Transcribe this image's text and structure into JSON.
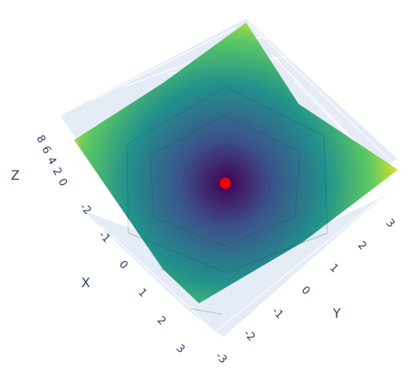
{
  "chart_data": {
    "type": "surface",
    "title": "",
    "axes": {
      "x": {
        "label": "X",
        "ticks": [
          "-2",
          "-1",
          "0",
          "1",
          "2",
          "3"
        ],
        "range": [
          -3,
          3
        ]
      },
      "y": {
        "label": "Y",
        "ticks": [
          "-3",
          "-2",
          "-1",
          "0",
          "1",
          "2",
          "3"
        ],
        "range": [
          -3,
          3
        ]
      },
      "z": {
        "label": "Z",
        "ticks": [
          "0",
          "2",
          "4",
          "6",
          "8"
        ],
        "range": [
          0,
          18
        ]
      }
    },
    "x": [
      -3,
      -2,
      -1,
      0,
      1,
      2,
      3
    ],
    "y": [
      -3,
      -2,
      -1,
      0,
      1,
      2,
      3
    ],
    "z_function": "x^2 + y^2",
    "colorscale": "Viridis",
    "colors": [
      "#440154",
      "#3b528b",
      "#21918c",
      "#5ec962",
      "#fde725"
    ],
    "marker": {
      "x": 0,
      "y": 0,
      "z": 0,
      "color": "#ff0000"
    },
    "grid": true,
    "background_color": "#e5ecf6",
    "legend": "none"
  }
}
